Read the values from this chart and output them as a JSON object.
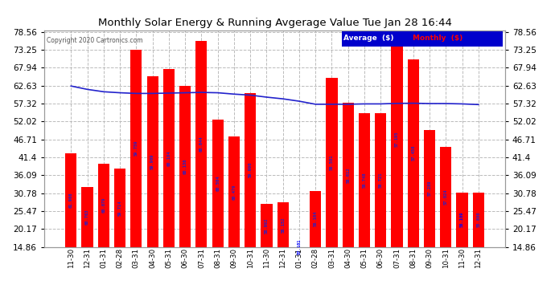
{
  "title": "Monthly Solar Energy & Running Avgerage Value Tue Jan 28 16:44",
  "copyright": "Copyright 2020 Cartronics.com",
  "categories": [
    "11-30",
    "12-31",
    "01-31",
    "02-28",
    "03-31",
    "04-30",
    "05-31",
    "06-30",
    "07-31",
    "08-31",
    "09-30",
    "10-31",
    "11-30",
    "12-31",
    "01-31",
    "02-28",
    "03-31",
    "04-30",
    "05-31",
    "06-30",
    "07-31",
    "08-31",
    "09-30",
    "10-31",
    "11-30",
    "12-31"
  ],
  "bar_values": [
    42.5,
    32.5,
    39.5,
    38.0,
    73.25,
    65.5,
    67.5,
    62.5,
    75.8,
    52.5,
    47.5,
    60.5,
    27.5,
    28.0,
    14.86,
    31.5,
    65.0,
    57.5,
    54.5,
    54.5,
    78.56,
    70.5,
    49.5,
    44.5,
    31.0,
    31.0
  ],
  "avg_values": [
    62.5,
    61.5,
    60.8,
    60.5,
    60.3,
    60.3,
    60.4,
    60.5,
    60.6,
    60.5,
    60.1,
    59.8,
    59.2,
    58.7,
    58.0,
    57.1,
    57.1,
    57.1,
    57.2,
    57.2,
    57.35,
    57.4,
    57.3,
    57.3,
    57.2,
    57.0
  ],
  "bar_labels": [
    "61.966",
    "60.763",
    "60.079",
    "59.714",
    "59.759",
    "59.909",
    "60.104",
    "60.136",
    "60.644",
    "60.504",
    "60.479",
    "59.990",
    "58.992",
    "58.152",
    "57.101",
    "56.164",
    "56.581",
    "56.612",
    "56.748",
    "56.721",
    "57.195",
    "57.458",
    "57.289",
    "57.024",
    "56.109",
    "55.800"
  ],
  "special_label_indices": [
    14,
    24
  ],
  "ylim_min": 14.86,
  "ylim_max": 78.56,
  "yticks": [
    14.86,
    20.17,
    25.47,
    30.78,
    36.09,
    41.4,
    46.71,
    52.02,
    57.32,
    62.63,
    67.94,
    73.25,
    78.56
  ],
  "bar_color": "#ff0000",
  "avg_line_color": "#2222cc",
  "bar_label_color": "#2222cc",
  "special_label_color": "#0000ff",
  "bg_color": "#ffffff",
  "plot_bg_color": "#ffffff",
  "grid_color": "#bbbbbb",
  "title_color": "#000000",
  "copyright_color": "#555555",
  "legend_bg_color": "#0000cc",
  "legend_avg_text_color": "#ffffff",
  "legend_monthly_text_color": "#ff0000"
}
